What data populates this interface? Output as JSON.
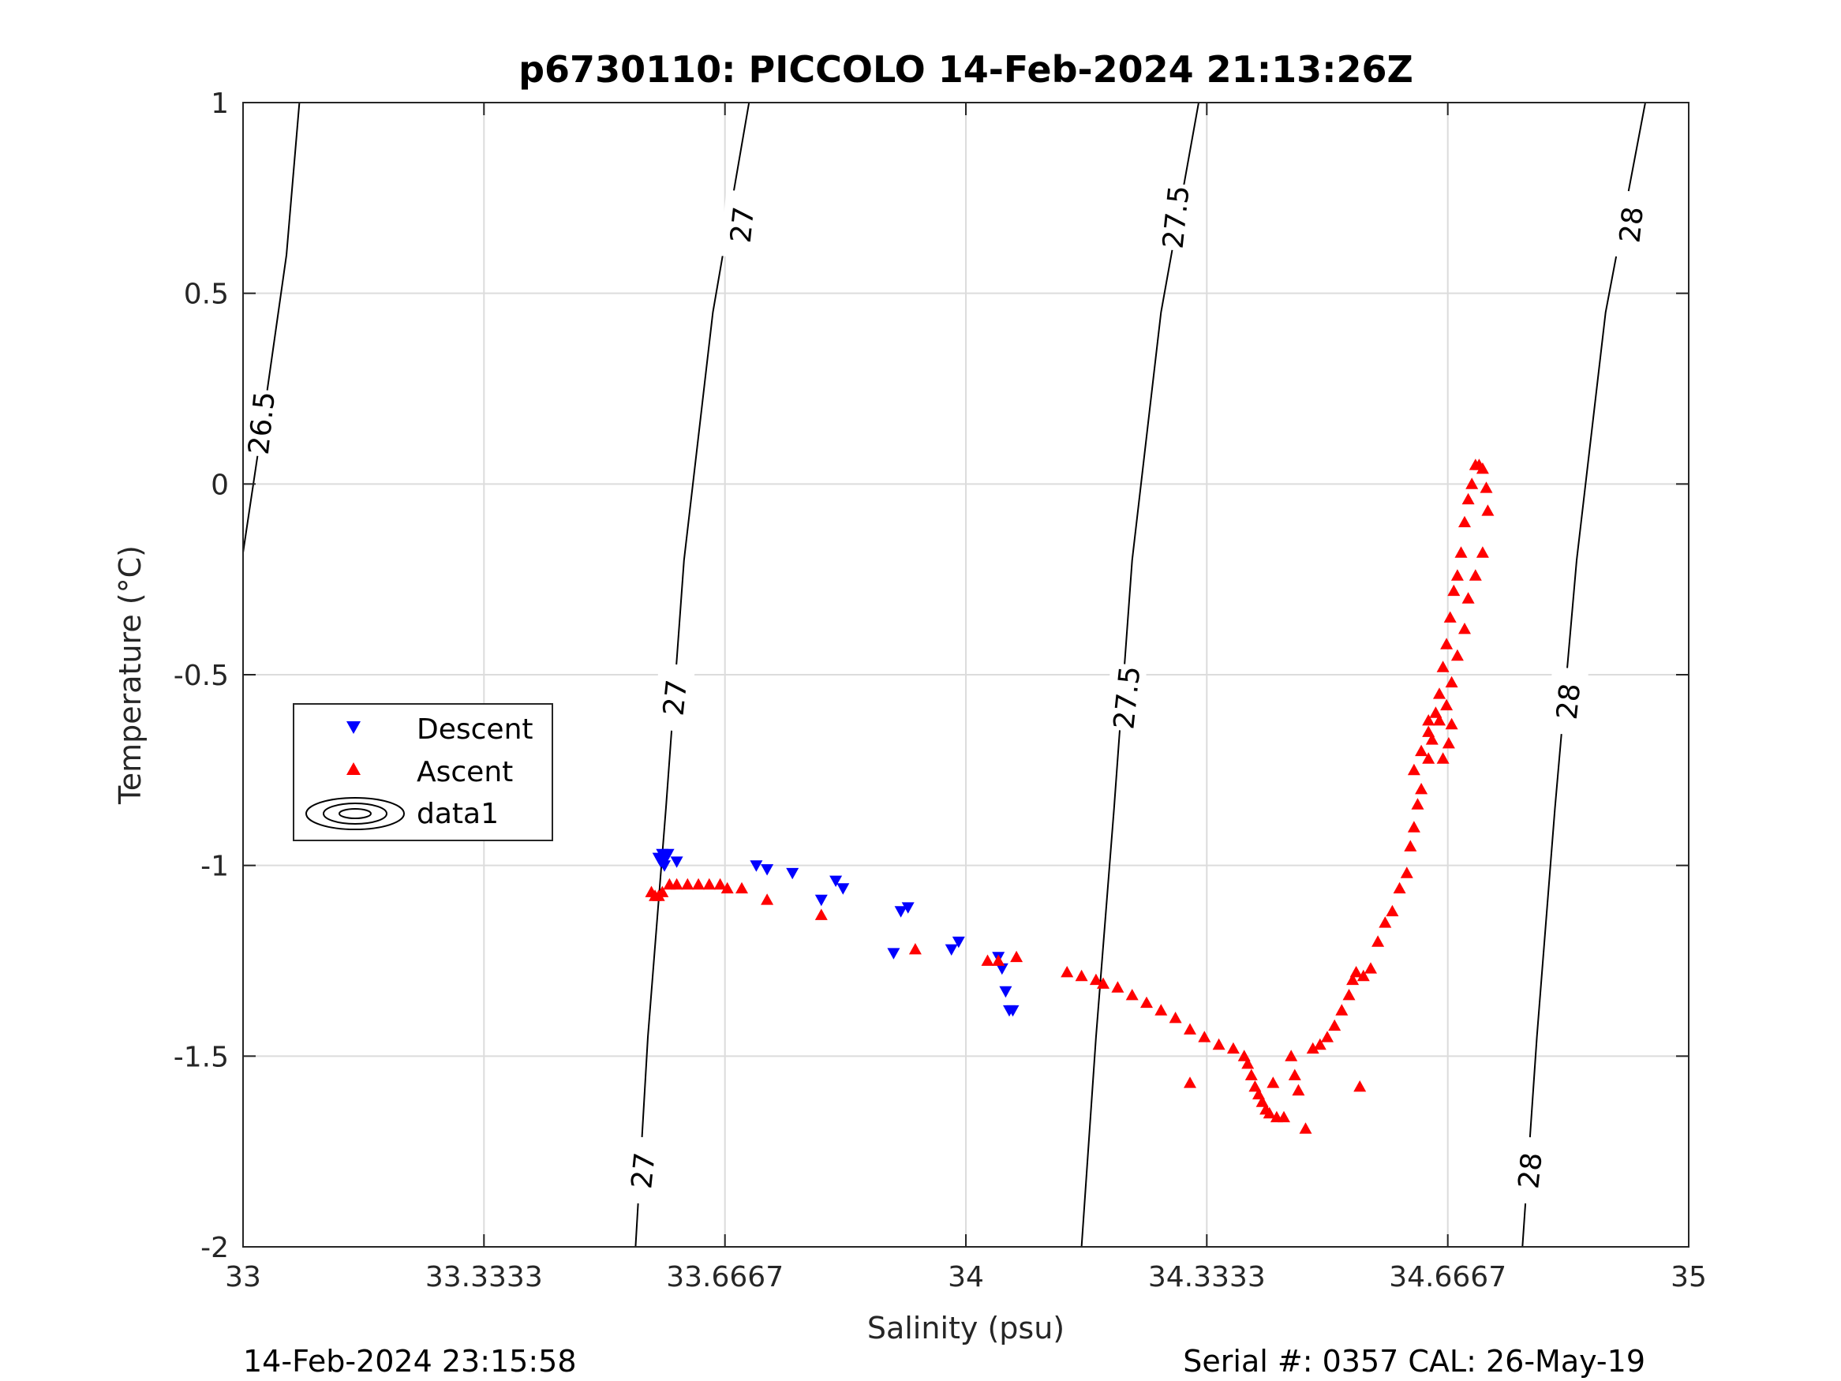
{
  "chart_data": {
    "type": "scatter",
    "title": "p6730110: PICCOLO 14-Feb-2024 21:13:26Z",
    "xlabel": "Salinity (psu)",
    "ylabel": "Temperature (°C)",
    "xlim": [
      33,
      35
    ],
    "ylim": [
      -2,
      1
    ],
    "x_ticks": [
      33,
      33.3333,
      33.6667,
      34,
      34.3333,
      34.6667,
      35
    ],
    "x_tick_labels": [
      "33",
      "33.3333",
      "33.6667",
      "34",
      "34.3333",
      "34.6667",
      "35"
    ],
    "y_ticks": [
      -2,
      -1.5,
      -1,
      -0.5,
      0,
      0.5,
      1
    ],
    "y_tick_labels": [
      "-2",
      "-1.5",
      "-1",
      "-0.5",
      "0",
      "0.5",
      "1"
    ],
    "grid": true,
    "legend_position": "left",
    "legend": [
      "Descent",
      "Ascent",
      "data1"
    ],
    "series": [
      {
        "name": "Descent",
        "color": "#0000ff",
        "marker": "triangle-down",
        "points": [
          [
            33.575,
            -0.98
          ],
          [
            33.578,
            -0.99
          ],
          [
            33.58,
            -0.97
          ],
          [
            33.583,
            -1.0
          ],
          [
            33.585,
            -0.98
          ],
          [
            33.588,
            -0.97
          ],
          [
            33.6,
            -0.99
          ],
          [
            33.71,
            -1.0
          ],
          [
            33.725,
            -1.01
          ],
          [
            33.76,
            -1.02
          ],
          [
            33.8,
            -1.09
          ],
          [
            33.82,
            -1.04
          ],
          [
            33.83,
            -1.06
          ],
          [
            33.91,
            -1.12
          ],
          [
            33.92,
            -1.11
          ],
          [
            33.9,
            -1.23
          ],
          [
            33.98,
            -1.22
          ],
          [
            33.99,
            -1.2
          ],
          [
            34.045,
            -1.24
          ],
          [
            34.05,
            -1.27
          ],
          [
            34.055,
            -1.33
          ],
          [
            34.06,
            -1.38
          ],
          [
            34.065,
            -1.38
          ]
        ]
      },
      {
        "name": "Ascent",
        "color": "#ff0000",
        "marker": "triangle-up",
        "points": [
          [
            33.565,
            -1.07
          ],
          [
            33.57,
            -1.08
          ],
          [
            33.575,
            -1.08
          ],
          [
            33.58,
            -1.07
          ],
          [
            33.59,
            -1.05
          ],
          [
            33.6,
            -1.05
          ],
          [
            33.615,
            -1.05
          ],
          [
            33.63,
            -1.05
          ],
          [
            33.645,
            -1.05
          ],
          [
            33.66,
            -1.05
          ],
          [
            33.67,
            -1.06
          ],
          [
            33.69,
            -1.06
          ],
          [
            33.725,
            -1.09
          ],
          [
            33.8,
            -1.13
          ],
          [
            33.93,
            -1.22
          ],
          [
            34.03,
            -1.25
          ],
          [
            34.045,
            -1.25
          ],
          [
            34.07,
            -1.24
          ],
          [
            34.14,
            -1.28
          ],
          [
            34.16,
            -1.29
          ],
          [
            34.18,
            -1.3
          ],
          [
            34.19,
            -1.31
          ],
          [
            34.21,
            -1.32
          ],
          [
            34.23,
            -1.34
          ],
          [
            34.25,
            -1.36
          ],
          [
            34.27,
            -1.38
          ],
          [
            34.29,
            -1.4
          ],
          [
            34.31,
            -1.43
          ],
          [
            34.33,
            -1.45
          ],
          [
            34.35,
            -1.47
          ],
          [
            34.37,
            -1.48
          ],
          [
            34.385,
            -1.5
          ],
          [
            34.39,
            -1.52
          ],
          [
            34.395,
            -1.55
          ],
          [
            34.4,
            -1.58
          ],
          [
            34.405,
            -1.6
          ],
          [
            34.41,
            -1.62
          ],
          [
            34.415,
            -1.64
          ],
          [
            34.42,
            -1.65
          ],
          [
            34.43,
            -1.66
          ],
          [
            34.44,
            -1.66
          ],
          [
            34.31,
            -1.57
          ],
          [
            34.425,
            -1.57
          ],
          [
            34.45,
            -1.5
          ],
          [
            34.455,
            -1.55
          ],
          [
            34.46,
            -1.59
          ],
          [
            34.47,
            -1.69
          ],
          [
            34.48,
            -1.48
          ],
          [
            34.49,
            -1.47
          ],
          [
            34.5,
            -1.45
          ],
          [
            34.51,
            -1.42
          ],
          [
            34.52,
            -1.38
          ],
          [
            34.53,
            -1.34
          ],
          [
            34.535,
            -1.3
          ],
          [
            34.54,
            -1.28
          ],
          [
            34.545,
            -1.58
          ],
          [
            34.55,
            -1.29
          ],
          [
            34.56,
            -1.27
          ],
          [
            34.57,
            -1.2
          ],
          [
            34.58,
            -1.15
          ],
          [
            34.59,
            -1.12
          ],
          [
            34.6,
            -1.06
          ],
          [
            34.61,
            -1.02
          ],
          [
            34.615,
            -0.95
          ],
          [
            34.62,
            -0.9
          ],
          [
            34.625,
            -0.84
          ],
          [
            34.63,
            -0.8
          ],
          [
            34.64,
            -0.72
          ],
          [
            34.645,
            -0.67
          ],
          [
            34.65,
            -0.6
          ],
          [
            34.655,
            -0.55
          ],
          [
            34.66,
            -0.48
          ],
          [
            34.665,
            -0.42
          ],
          [
            34.67,
            -0.35
          ],
          [
            34.675,
            -0.28
          ],
          [
            34.68,
            -0.24
          ],
          [
            34.685,
            -0.18
          ],
          [
            34.69,
            -0.1
          ],
          [
            34.695,
            -0.04
          ],
          [
            34.7,
            0.0
          ],
          [
            34.705,
            0.05
          ],
          [
            34.71,
            0.05
          ],
          [
            34.715,
            0.04
          ],
          [
            34.72,
            -0.01
          ],
          [
            34.722,
            -0.07
          ],
          [
            34.715,
            -0.18
          ],
          [
            34.705,
            -0.24
          ],
          [
            34.695,
            -0.3
          ],
          [
            34.69,
            -0.38
          ],
          [
            34.68,
            -0.45
          ],
          [
            34.672,
            -0.52
          ],
          [
            34.665,
            -0.58
          ],
          [
            34.655,
            -0.62
          ],
          [
            34.64,
            -0.65
          ],
          [
            34.63,
            -0.7
          ],
          [
            34.62,
            -0.75
          ],
          [
            34.66,
            -0.72
          ],
          [
            34.668,
            -0.68
          ],
          [
            34.672,
            -0.63
          ],
          [
            34.64,
            -0.62
          ]
        ]
      }
    ],
    "isopycnals": [
      {
        "label": "26.5",
        "points": [
          [
            33.0,
            -0.18
          ],
          [
            33.03,
            0.2
          ],
          [
            33.06,
            0.6
          ],
          [
            33.078,
            1.0
          ]
        ]
      },
      {
        "label": "27",
        "points": [
          [
            33.543,
            -2.0
          ],
          [
            33.56,
            -1.45
          ],
          [
            33.585,
            -0.85
          ],
          [
            33.61,
            -0.2
          ],
          [
            33.65,
            0.45
          ],
          [
            33.7,
            1.0
          ]
        ]
      },
      {
        "label": "27.5",
        "points": [
          [
            34.16,
            -2.0
          ],
          [
            34.18,
            -1.45
          ],
          [
            34.205,
            -0.85
          ],
          [
            34.23,
            -0.2
          ],
          [
            34.27,
            0.45
          ],
          [
            34.322,
            1.0
          ]
        ]
      },
      {
        "label": "28",
        "points": [
          [
            34.77,
            -2.0
          ],
          [
            34.79,
            -1.45
          ],
          [
            34.815,
            -0.85
          ],
          [
            34.845,
            -0.2
          ],
          [
            34.885,
            0.45
          ],
          [
            34.94,
            1.0
          ]
        ]
      }
    ],
    "contour_labels": [
      {
        "text": "26.5",
        "x": 33.025,
        "y": 0.16
      },
      {
        "text": "27",
        "x": 33.69,
        "y": 0.68
      },
      {
        "text": "27",
        "x": 33.597,
        "y": -0.56
      },
      {
        "text": "27",
        "x": 33.553,
        "y": -1.8
      },
      {
        "text": "27.5",
        "x": 34.29,
        "y": 0.7
      },
      {
        "text": "27.5",
        "x": 34.222,
        "y": -0.56
      },
      {
        "text": "28",
        "x": 34.92,
        "y": 0.68
      },
      {
        "text": "28",
        "x": 34.833,
        "y": -0.57
      },
      {
        "text": "28",
        "x": 34.78,
        "y": -1.8
      }
    ]
  },
  "footer": {
    "left": "14-Feb-2024 23:15:58",
    "right": "Serial #: 0357  CAL: 26-May-19"
  }
}
